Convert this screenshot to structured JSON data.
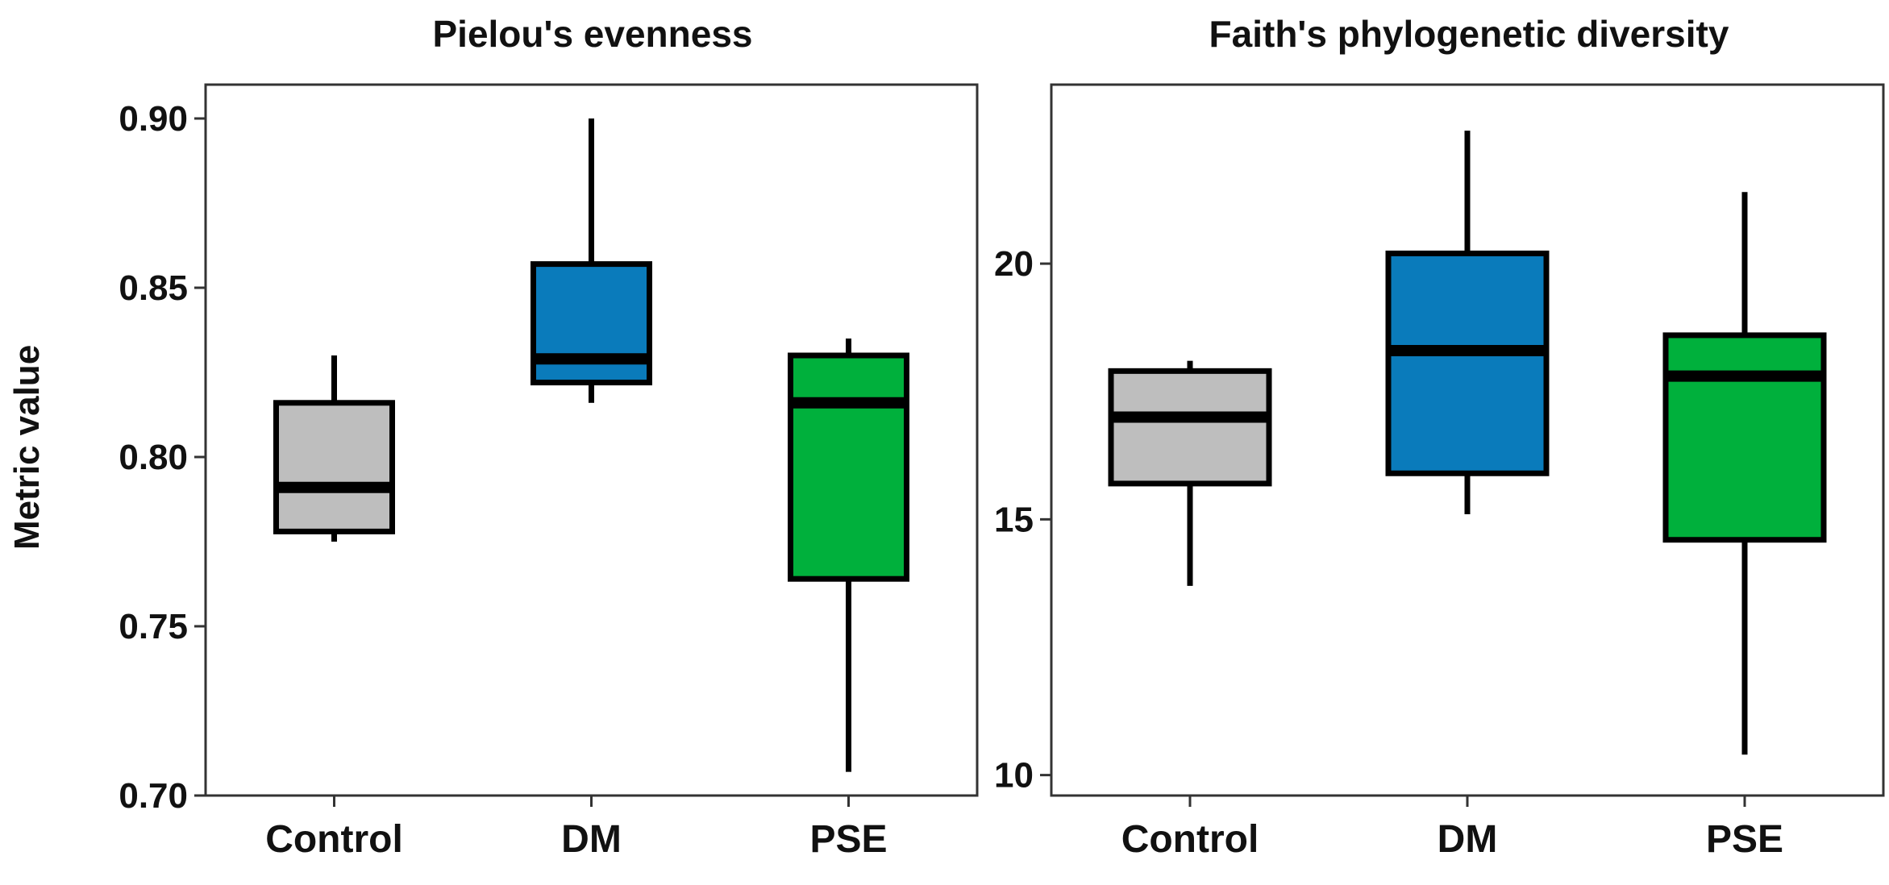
{
  "figure": {
    "ylabel": "Metric value"
  },
  "colors": {
    "Control": "#BEBEBE",
    "DM": "#0A7BBB",
    "PSE": "#00B03C",
    "outline": "#000000"
  },
  "chart_data": [
    {
      "type": "box",
      "title": "Pielou's evenness",
      "xlabel": "",
      "ylabel": "Metric value",
      "categories": [
        "Control",
        "DM",
        "PSE"
      ],
      "ylim": [
        0.7,
        0.91
      ],
      "yticks": [
        0.7,
        0.75,
        0.8,
        0.85,
        0.9
      ],
      "ytick_labels": [
        "0.70",
        "0.75",
        "0.80",
        "0.85",
        "0.90"
      ],
      "boxes": [
        {
          "name": "Control",
          "whisker_low": 0.775,
          "q1": 0.778,
          "median": 0.791,
          "q3": 0.816,
          "whisker_high": 0.83
        },
        {
          "name": "DM",
          "whisker_low": 0.816,
          "q1": 0.822,
          "median": 0.829,
          "q3": 0.857,
          "whisker_high": 0.9
        },
        {
          "name": "PSE",
          "whisker_low": 0.707,
          "q1": 0.764,
          "median": 0.816,
          "q3": 0.83,
          "whisker_high": 0.835
        }
      ]
    },
    {
      "type": "box",
      "title": "Faith's phylogenetic diversity",
      "xlabel": "",
      "ylabel": "",
      "categories": [
        "Control",
        "DM",
        "PSE"
      ],
      "ylim": [
        9.6,
        23.5
      ],
      "yticks": [
        10,
        15,
        20
      ],
      "ytick_labels": [
        "10",
        "15",
        "20"
      ],
      "boxes": [
        {
          "name": "Control",
          "whisker_low": 13.7,
          "q1": 15.7,
          "median": 17.0,
          "q3": 17.9,
          "whisker_high": 18.1
        },
        {
          "name": "DM",
          "whisker_low": 15.1,
          "q1": 15.9,
          "median": 18.3,
          "q3": 20.2,
          "whisker_high": 22.6
        },
        {
          "name": "PSE",
          "whisker_low": 10.4,
          "q1": 14.6,
          "median": 17.8,
          "q3": 18.6,
          "whisker_high": 21.4
        }
      ]
    }
  ]
}
